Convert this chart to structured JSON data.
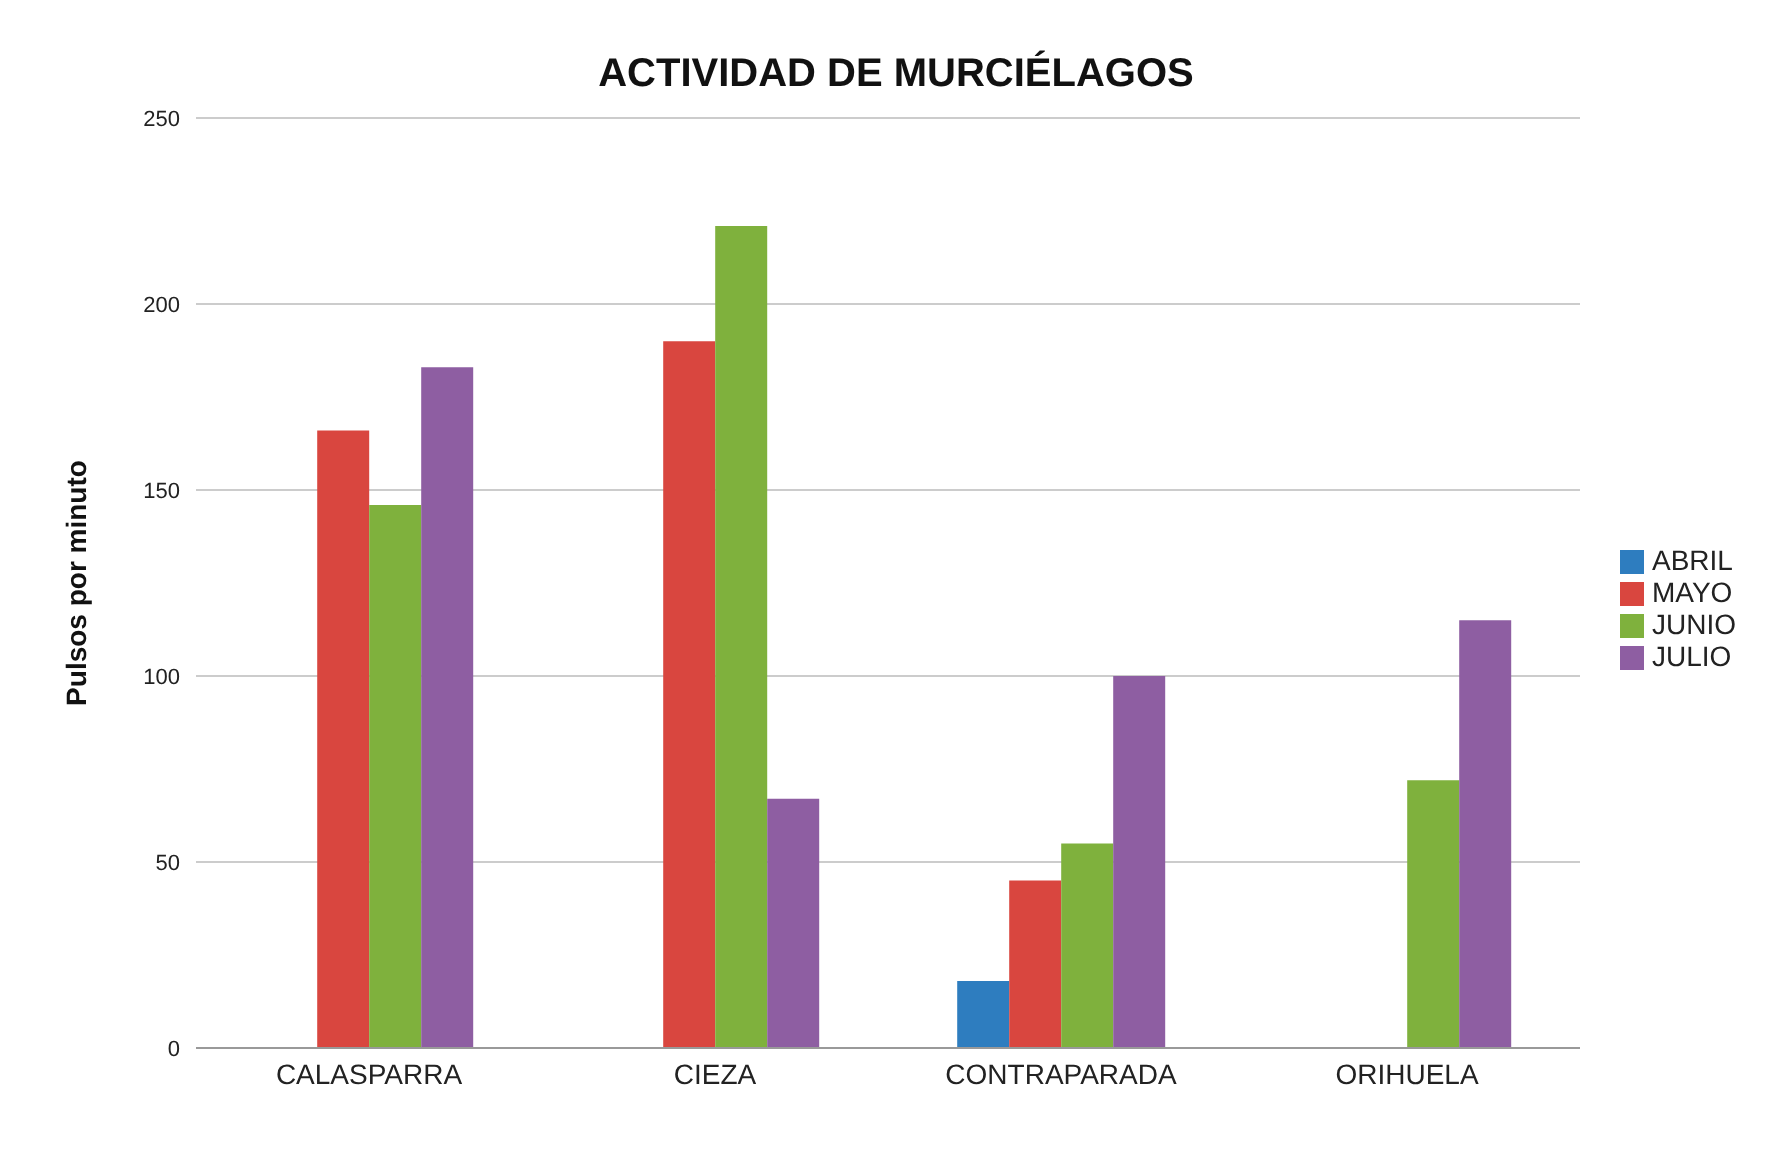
{
  "chart_data": {
    "type": "bar",
    "title": "ACTIVIDAD DE MURCIÉLAGOS",
    "ylabel": "Pulsos por minuto",
    "categories": [
      "CALASPARRA",
      "CIEZA",
      "CONTRAPARADA",
      "ORIHUELA"
    ],
    "series": [
      {
        "name": "ABRIL",
        "color": "#2e7dbf",
        "values": [
          null,
          null,
          18,
          null
        ]
      },
      {
        "name": "MAYO",
        "color": "#d9463f",
        "values": [
          166,
          190,
          45,
          null
        ]
      },
      {
        "name": "JUNIO",
        "color": "#7fb13d",
        "values": [
          146,
          221,
          55,
          72
        ]
      },
      {
        "name": "JULIO",
        "color": "#8e5ea2",
        "values": [
          183,
          67,
          100,
          115
        ]
      }
    ],
    "ylim": [
      0,
      250
    ],
    "yticks": [
      0,
      50,
      100,
      150,
      200,
      250
    ],
    "grid": "y",
    "legend": "right"
  }
}
